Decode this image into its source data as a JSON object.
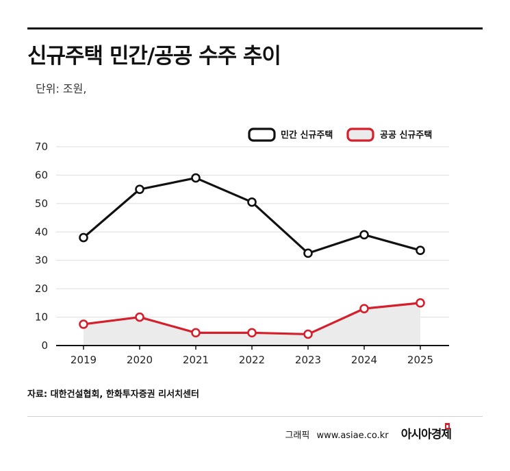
{
  "header": {
    "title": "신규주택 민간/공공 수주 추이",
    "unit": "단위: 조원,"
  },
  "footer": {
    "source": "자료: 대한건설협회, 한화투자증권 리서치센터",
    "credit": "그래픽",
    "url": "www.asiae.co.kr",
    "brand": "아시아경제"
  },
  "colors": {
    "private": "#111111",
    "public": "#d61f2c",
    "public_fill": "#ebebeb",
    "grid": "#dddddd"
  },
  "chart_data": {
    "type": "line",
    "categories": [
      "2019",
      "2020",
      "2021",
      "2022",
      "2023",
      "2024",
      "2025"
    ],
    "series": [
      {
        "name": "민간 신규주택",
        "values": [
          38,
          55,
          59,
          50.5,
          32.5,
          39,
          33.5
        ]
      },
      {
        "name": "공공 신규주택",
        "values": [
          7.5,
          10,
          4.5,
          4.5,
          4,
          13,
          15
        ],
        "area": true
      }
    ],
    "y_ticks": [
      "0",
      "10",
      "20",
      "30",
      "40",
      "50",
      "60",
      "70"
    ],
    "ylim": [
      0,
      70
    ],
    "grid": true,
    "legend": "top-right",
    "title": "",
    "xlabel": "",
    "ylabel": ""
  }
}
